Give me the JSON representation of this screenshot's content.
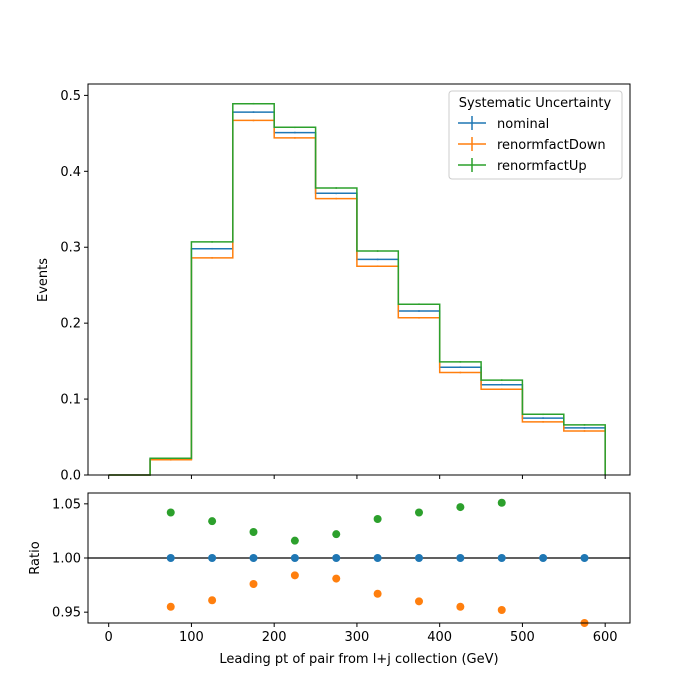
{
  "chart_data": [
    {
      "type": "line",
      "step": true,
      "ylabel": "Events",
      "xlim": [
        -25,
        630
      ],
      "ylim": [
        0,
        0.515
      ],
      "y_ticks": [
        0.0,
        0.1,
        0.2,
        0.3,
        0.4,
        0.5
      ],
      "y_tick_labels": [
        "0.0",
        "0.1",
        "0.2",
        "0.3",
        "0.4",
        "0.5"
      ],
      "bin_edges": [
        0,
        50,
        100,
        150,
        200,
        250,
        300,
        350,
        400,
        450,
        500,
        550,
        600
      ],
      "legend": {
        "title": "Systematic Uncertainty",
        "placement": "top-right"
      },
      "series": [
        {
          "name": "nominal",
          "color": "#1f77b4",
          "values": [
            0.0,
            0.021,
            0.298,
            0.478,
            0.451,
            0.371,
            0.284,
            0.216,
            0.142,
            0.119,
            0.075,
            0.062
          ]
        },
        {
          "name": "renormfactDown",
          "color": "#ff7f0e",
          "values": [
            0.0,
            0.02,
            0.286,
            0.467,
            0.444,
            0.364,
            0.275,
            0.207,
            0.135,
            0.113,
            0.07,
            0.058
          ]
        },
        {
          "name": "renormfactUp",
          "color": "#2ca02c",
          "values": [
            0.0,
            0.022,
            0.307,
            0.489,
            0.458,
            0.378,
            0.295,
            0.225,
            0.149,
            0.125,
            0.08,
            0.066
          ]
        }
      ]
    },
    {
      "type": "scatter",
      "xlabel": "Leading pt of pair from l+j collection (GeV)",
      "ylabel": "Ratio",
      "xlim": [
        -25,
        630
      ],
      "ylim": [
        0.94,
        1.06
      ],
      "x_ticks": [
        0,
        100,
        200,
        300,
        400,
        500,
        600
      ],
      "x_tick_labels": [
        "0",
        "100",
        "200",
        "300",
        "400",
        "500",
        "600"
      ],
      "y_ticks": [
        0.95,
        1.0,
        1.05
      ],
      "y_tick_labels": [
        "0.95",
        "1.00",
        "1.05"
      ],
      "reference_line": 1.0,
      "series": [
        {
          "name": "nominal",
          "color": "#1f77b4",
          "points": [
            [
              75,
              1.0
            ],
            [
              125,
              1.0
            ],
            [
              175,
              1.0
            ],
            [
              225,
              1.0
            ],
            [
              275,
              1.0
            ],
            [
              325,
              1.0
            ],
            [
              375,
              1.0
            ],
            [
              425,
              1.0
            ],
            [
              475,
              1.0
            ],
            [
              525,
              1.0
            ],
            [
              575,
              1.0
            ]
          ]
        },
        {
          "name": "renormfactDown",
          "color": "#ff7f0e",
          "points": [
            [
              75,
              0.955
            ],
            [
              125,
              0.961
            ],
            [
              175,
              0.976
            ],
            [
              225,
              0.984
            ],
            [
              275,
              0.981
            ],
            [
              325,
              0.967
            ],
            [
              375,
              0.96
            ],
            [
              425,
              0.955
            ],
            [
              475,
              0.952
            ],
            [
              575,
              0.94
            ]
          ]
        },
        {
          "name": "renormfactUp",
          "color": "#2ca02c",
          "points": [
            [
              75,
              1.042
            ],
            [
              125,
              1.034
            ],
            [
              175,
              1.024
            ],
            [
              225,
              1.016
            ],
            [
              275,
              1.022
            ],
            [
              325,
              1.036
            ],
            [
              375,
              1.042
            ],
            [
              425,
              1.047
            ],
            [
              475,
              1.051
            ]
          ]
        }
      ]
    }
  ]
}
